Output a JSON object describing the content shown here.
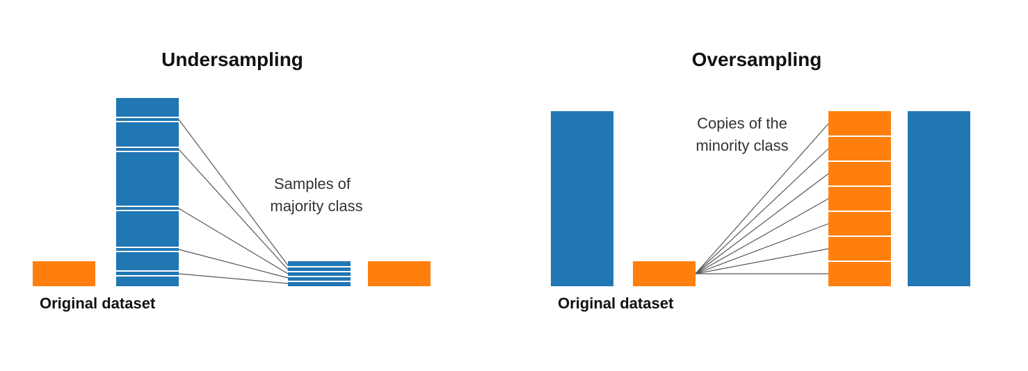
{
  "colors": {
    "majority": "#2176b4",
    "minority": "#ff7f0e",
    "connector": "#555555"
  },
  "undersampling": {
    "title": "Undersampling",
    "caption": "Original dataset",
    "annotation_line1": "Samples of",
    "annotation_line2": "majority class"
  },
  "oversampling": {
    "title": "Oversampling",
    "caption": "Original dataset",
    "annotation_line1": "Copies of the",
    "annotation_line2": "minority class"
  }
}
